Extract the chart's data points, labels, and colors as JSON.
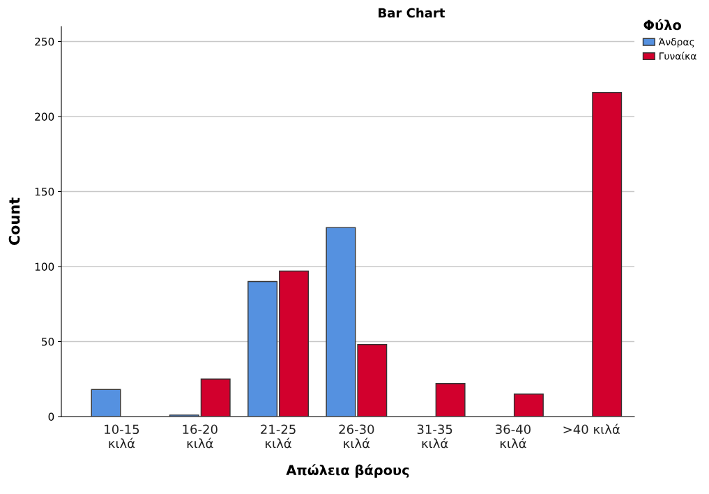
{
  "chart_data": {
    "type": "bar",
    "title": "Bar Chart",
    "xlabel": "Απώλεια βάρους",
    "ylabel": "Count",
    "legend_title": "Φύλο",
    "categories": [
      "10-15\nκιλά",
      "16-20\nκιλά",
      "21-25\nκιλά",
      "26-30\nκιλά",
      "31-35\nκιλά",
      "36-40\nκιλά",
      ">40 κιλά"
    ],
    "series": [
      {
        "name": "Άνδρας",
        "color": "#5591e0",
        "values": [
          18,
          1,
          90,
          126,
          null,
          null,
          null
        ]
      },
      {
        "name": "Γυναίκα",
        "color": "#d2002d",
        "values": [
          null,
          25,
          97,
          48,
          22,
          15,
          216
        ]
      }
    ],
    "ylim": [
      0,
      260
    ],
    "yticks": [
      0,
      50,
      100,
      150,
      200,
      250
    ],
    "grid": "y",
    "legend": "top right"
  }
}
